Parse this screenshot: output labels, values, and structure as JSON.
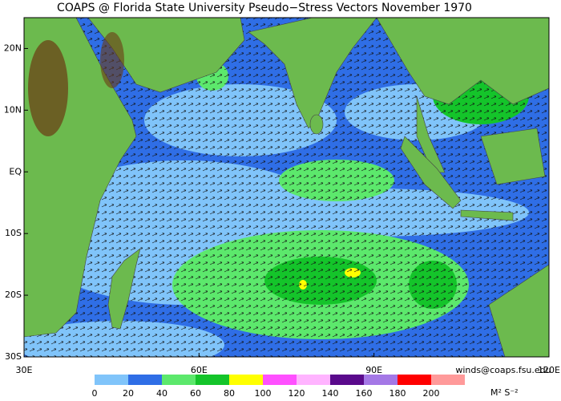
{
  "title": "COAPS @ Florida State University Pseudo−Stress Vectors  November 1970",
  "map": {
    "lonlim": [
      30,
      120
    ],
    "latlim": [
      -30,
      25
    ],
    "lon_ticks": [
      {
        "value": 30,
        "label": "30E"
      },
      {
        "value": 60,
        "label": "60E"
      },
      {
        "value": 90,
        "label": "90E"
      },
      {
        "value": 120,
        "label": "120E"
      }
    ],
    "lat_ticks": [
      {
        "value": 20,
        "label": "20N"
      },
      {
        "value": 10,
        "label": "10N"
      },
      {
        "value": 0,
        "label": "EQ"
      },
      {
        "value": -10,
        "label": "10S"
      },
      {
        "value": -20,
        "label": "20S"
      },
      {
        "value": -30,
        "label": "30S"
      }
    ]
  },
  "colorbar": {
    "levels": [
      0,
      20,
      40,
      60,
      80,
      100,
      120,
      140,
      160,
      180,
      200
    ],
    "colors": [
      "#80c4fa",
      "#2f6ee6",
      "#5ce86c",
      "#14c42a",
      "#ffff00",
      "#ff50ff",
      "#ffb4ff",
      "#5a0a8c",
      "#a478e6",
      "#ff0000",
      "#ff9a9a"
    ],
    "units": "M² S⁻²"
  },
  "credit": "winds@coaps.fsu.edu"
}
